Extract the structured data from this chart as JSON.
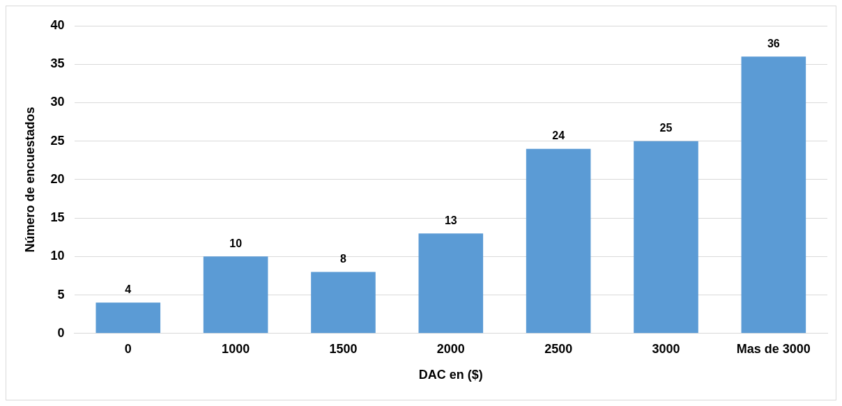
{
  "chart_data": {
    "type": "bar",
    "xlabel": "DAC en ($)",
    "ylabel": "Número de encuestados",
    "categories": [
      "0",
      "1000",
      "1500",
      "2000",
      "2500",
      "3000",
      "Mas de 3000"
    ],
    "values": [
      4,
      10,
      8,
      13,
      24,
      25,
      36
    ],
    "color": "#5b9bd5",
    "ylim": [
      0,
      40
    ],
    "yticks": [
      0,
      5,
      10,
      15,
      20,
      25,
      30,
      35,
      40
    ],
    "grid": "y",
    "legend": false,
    "data_labels": true
  }
}
